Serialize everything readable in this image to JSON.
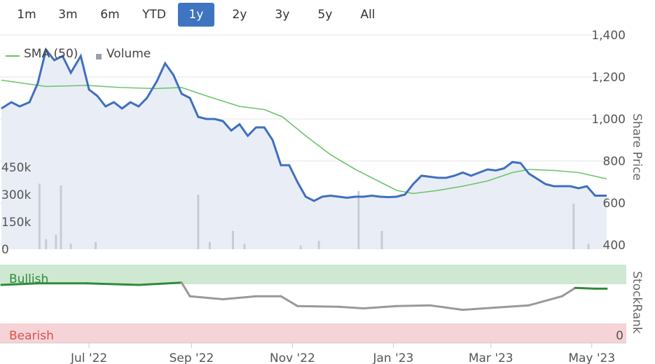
{
  "range_selector": {
    "items": [
      {
        "label": "1m",
        "active": false
      },
      {
        "label": "3m",
        "active": false
      },
      {
        "label": "6m",
        "active": false
      },
      {
        "label": "YTD",
        "active": false
      },
      {
        "label": "1y",
        "active": true
      },
      {
        "label": "2y",
        "active": false
      },
      {
        "label": "3y",
        "active": false
      },
      {
        "label": "5y",
        "active": false
      },
      {
        "label": "All",
        "active": false
      }
    ]
  },
  "legend": {
    "sma_label": "SMA (50)",
    "volume_label": "Volume"
  },
  "colors": {
    "price": "#3f6fbf",
    "sma": "#6ac46a",
    "volume": "#c8ccd2",
    "area_fill": "#e9edf5",
    "stockrank": "#999999",
    "stockrank_bullish": "#2f8a3a",
    "bullish_band": "#cfe8d2",
    "bearish_band": "#f6d3d6",
    "bullish_text": "#2f8a3a",
    "bearish_text": "#d9534f",
    "grid": "#e6e6e6"
  },
  "chart_data": [
    {
      "type": "line",
      "title": "",
      "ylabel": "Share Price",
      "ylim": [
        400,
        1400
      ],
      "yticks": [
        "1,400",
        "1,200",
        "1,000",
        "800",
        "600",
        "400"
      ],
      "x_ticks": [
        "Jul '22",
        "Sep '22",
        "Nov '22",
        "Jan '23",
        "Mar '23",
        "May '23"
      ],
      "x_tick_dates": [
        "2022-07-01",
        "2022-09-01",
        "2022-11-01",
        "2023-01-01",
        "2023-03-01",
        "2023-05-01"
      ],
      "xlim": [
        "2022-05-09",
        "2023-05-10"
      ],
      "series": [
        {
          "name": "",
          "points": [
            [
              "2022-05-09",
              1050
            ],
            [
              "2022-05-15",
              1080
            ],
            [
              "2022-05-20",
              1060
            ],
            [
              "2022-05-26",
              1080
            ],
            [
              "2022-05-31",
              1170
            ],
            [
              "2022-06-05",
              1330
            ],
            [
              "2022-06-10",
              1280
            ],
            [
              "2022-06-15",
              1300
            ],
            [
              "2022-06-20",
              1220
            ],
            [
              "2022-06-26",
              1300
            ],
            [
              "2022-07-01",
              1140
            ],
            [
              "2022-07-06",
              1110
            ],
            [
              "2022-07-11",
              1060
            ],
            [
              "2022-07-16",
              1080
            ],
            [
              "2022-07-21",
              1050
            ],
            [
              "2022-07-26",
              1080
            ],
            [
              "2022-07-31",
              1060
            ],
            [
              "2022-08-05",
              1100
            ],
            [
              "2022-08-11",
              1180
            ],
            [
              "2022-08-16",
              1265
            ],
            [
              "2022-08-21",
              1210
            ],
            [
              "2022-08-26",
              1120
            ],
            [
              "2022-08-31",
              1100
            ],
            [
              "2022-09-05",
              1010
            ],
            [
              "2022-09-10",
              1000
            ],
            [
              "2022-09-15",
              1000
            ],
            [
              "2022-09-20",
              990
            ],
            [
              "2022-09-25",
              945
            ],
            [
              "2022-09-30",
              975
            ],
            [
              "2022-10-05",
              920
            ],
            [
              "2022-10-10",
              960
            ],
            [
              "2022-10-15",
              960
            ],
            [
              "2022-10-20",
              900
            ],
            [
              "2022-10-25",
              780
            ],
            [
              "2022-10-30",
              780
            ],
            [
              "2022-11-04",
              700
            ],
            [
              "2022-11-09",
              630
            ],
            [
              "2022-11-14",
              610
            ],
            [
              "2022-11-19",
              630
            ],
            [
              "2022-11-24",
              635
            ],
            [
              "2022-11-29",
              630
            ],
            [
              "2022-12-04",
              625
            ],
            [
              "2022-12-09",
              630
            ],
            [
              "2022-12-14",
              630
            ],
            [
              "2022-12-19",
              635
            ],
            [
              "2022-12-24",
              630
            ],
            [
              "2022-12-29",
              628
            ],
            [
              "2023-01-03",
              630
            ],
            [
              "2023-01-08",
              640
            ],
            [
              "2023-01-13",
              690
            ],
            [
              "2023-01-18",
              730
            ],
            [
              "2023-01-23",
              725
            ],
            [
              "2023-01-28",
              720
            ],
            [
              "2023-02-02",
              720
            ],
            [
              "2023-02-07",
              730
            ],
            [
              "2023-02-12",
              745
            ],
            [
              "2023-02-17",
              730
            ],
            [
              "2023-02-22",
              745
            ],
            [
              "2023-02-27",
              760
            ],
            [
              "2023-03-04",
              755
            ],
            [
              "2023-03-09",
              765
            ],
            [
              "2023-03-14",
              795
            ],
            [
              "2023-03-19",
              790
            ],
            [
              "2023-03-24",
              740
            ],
            [
              "2023-03-29",
              715
            ],
            [
              "2023-04-03",
              690
            ],
            [
              "2023-04-08",
              680
            ],
            [
              "2023-04-13",
              680
            ],
            [
              "2023-04-18",
              680
            ],
            [
              "2023-04-23",
              670
            ],
            [
              "2023-04-28",
              680
            ],
            [
              "2023-05-03",
              635
            ],
            [
              "2023-05-10",
              635
            ]
          ]
        },
        {
          "name": "SMA (50)",
          "points": [
            [
              "2022-05-09",
              1185
            ],
            [
              "2022-06-05",
              1155
            ],
            [
              "2022-06-30",
              1160
            ],
            [
              "2022-07-20",
              1150
            ],
            [
              "2022-08-10",
              1145
            ],
            [
              "2022-08-26",
              1150
            ],
            [
              "2022-09-10",
              1110
            ],
            [
              "2022-09-30",
              1060
            ],
            [
              "2022-10-15",
              1045
            ],
            [
              "2022-10-26",
              1010
            ],
            [
              "2022-11-09",
              920
            ],
            [
              "2022-11-24",
              830
            ],
            [
              "2022-12-09",
              760
            ],
            [
              "2022-12-24",
              700
            ],
            [
              "2023-01-03",
              660
            ],
            [
              "2023-01-13",
              645
            ],
            [
              "2023-01-28",
              660
            ],
            [
              "2023-02-12",
              680
            ],
            [
              "2023-02-27",
              705
            ],
            [
              "2023-03-14",
              745
            ],
            [
              "2023-03-24",
              760
            ],
            [
              "2023-04-08",
              755
            ],
            [
              "2023-04-23",
              745
            ],
            [
              "2023-05-10",
              715
            ]
          ]
        }
      ]
    },
    {
      "type": "bar",
      "title": "Volume",
      "ylim": [
        0,
        600000
      ],
      "yticks": [
        "450k",
        "300k",
        "150k",
        "0"
      ],
      "series": [
        {
          "name": "Volume",
          "points": [
            [
              "2022-06-01",
              360000
            ],
            [
              "2022-06-05",
              55000
            ],
            [
              "2022-06-11",
              80000
            ],
            [
              "2022-06-14",
              350000
            ],
            [
              "2022-06-20",
              30000
            ],
            [
              "2022-07-05",
              40000
            ],
            [
              "2022-09-05",
              300000
            ],
            [
              "2022-09-12",
              40000
            ],
            [
              "2022-09-26",
              100000
            ],
            [
              "2022-10-03",
              30000
            ],
            [
              "2022-11-06",
              20000
            ],
            [
              "2022-11-17",
              45000
            ],
            [
              "2022-12-11",
              320000
            ],
            [
              "2022-12-25",
              100000
            ],
            [
              "2023-04-20",
              250000
            ],
            [
              "2023-04-29",
              30000
            ]
          ]
        }
      ]
    },
    {
      "type": "line",
      "title": "",
      "ylabel": "StockRank",
      "ylim": [
        0,
        100
      ],
      "yticks": [
        "0"
      ],
      "bands": [
        "Bullish",
        "Bearish"
      ],
      "series": [
        {
          "name": "",
          "points": [
            [
              "2022-05-09",
              75
            ],
            [
              "2022-05-31",
              77
            ],
            [
              "2022-06-30",
              77
            ],
            [
              "2022-07-31",
              75
            ],
            [
              "2022-08-26",
              78
            ],
            [
              "2022-08-31",
              60
            ],
            [
              "2022-09-20",
              56
            ],
            [
              "2022-10-10",
              60
            ],
            [
              "2022-10-25",
              60
            ],
            [
              "2022-11-04",
              47
            ],
            [
              "2022-11-29",
              46
            ],
            [
              "2022-12-14",
              44
            ],
            [
              "2023-01-03",
              47
            ],
            [
              "2023-01-23",
              48
            ],
            [
              "2023-02-12",
              42
            ],
            [
              "2023-03-04",
              45
            ],
            [
              "2023-03-24",
              48
            ],
            [
              "2023-04-13",
              60
            ],
            [
              "2023-04-21",
              71
            ],
            [
              "2023-05-03",
              70
            ],
            [
              "2023-05-10",
              70
            ]
          ]
        }
      ]
    }
  ]
}
